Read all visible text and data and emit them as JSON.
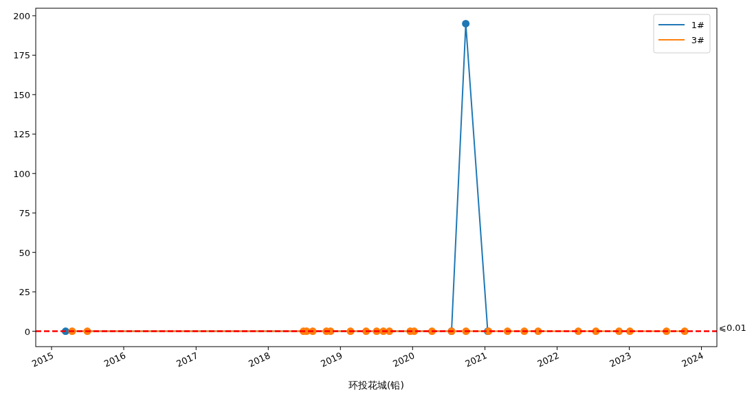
{
  "chart_data": {
    "type": "line",
    "xlabel": "环投花城(铅)",
    "marker": "circle",
    "legend": "top right",
    "grid": false,
    "xlim": [
      "2014-10-13",
      "2024-03-19"
    ],
    "ylim": [
      -9.75,
      204.75
    ],
    "xticks": [
      "2015",
      "2016",
      "2017",
      "2018",
      "2019",
      "2020",
      "2021",
      "2022",
      "2023",
      "2024"
    ],
    "yticks": [
      0,
      25,
      50,
      75,
      100,
      125,
      150,
      175,
      200
    ],
    "series": [
      {
        "name": "1#",
        "color": "#1f77b4",
        "x": [
          "2015-03-13",
          "2020-07-16",
          "2020-09-26",
          "2021-01-15"
        ],
        "values": [
          0,
          0,
          195,
          0
        ]
      },
      {
        "name": "3#",
        "color": "#ff7f0e",
        "x": [
          "2015-04-15",
          "2015-07-01",
          "2018-06-28",
          "2018-07-14",
          "2018-08-14",
          "2018-10-22",
          "2018-11-12",
          "2019-02-21",
          "2019-05-11",
          "2019-07-03",
          "2019-08-06",
          "2019-09-06",
          "2019-12-20",
          "2020-01-09",
          "2020-04-08",
          "2020-07-16",
          "2020-09-27",
          "2021-01-19",
          "2021-04-25",
          "2021-07-19",
          "2021-09-27",
          "2022-04-18",
          "2022-07-16",
          "2022-11-10",
          "2023-01-04",
          "2023-07-08",
          "2023-10-08"
        ],
        "values": [
          0,
          0,
          0,
          0,
          0,
          0,
          0,
          0,
          0,
          0,
          0,
          0,
          0,
          0,
          0,
          0,
          0,
          0,
          0,
          0,
          0,
          0,
          0,
          0,
          0,
          0,
          0
        ]
      }
    ],
    "ref_lines": [
      {
        "axis": "y",
        "value": 0,
        "label": "⩽0.01",
        "color": "#ff0000",
        "line_style": "dashed"
      }
    ]
  }
}
